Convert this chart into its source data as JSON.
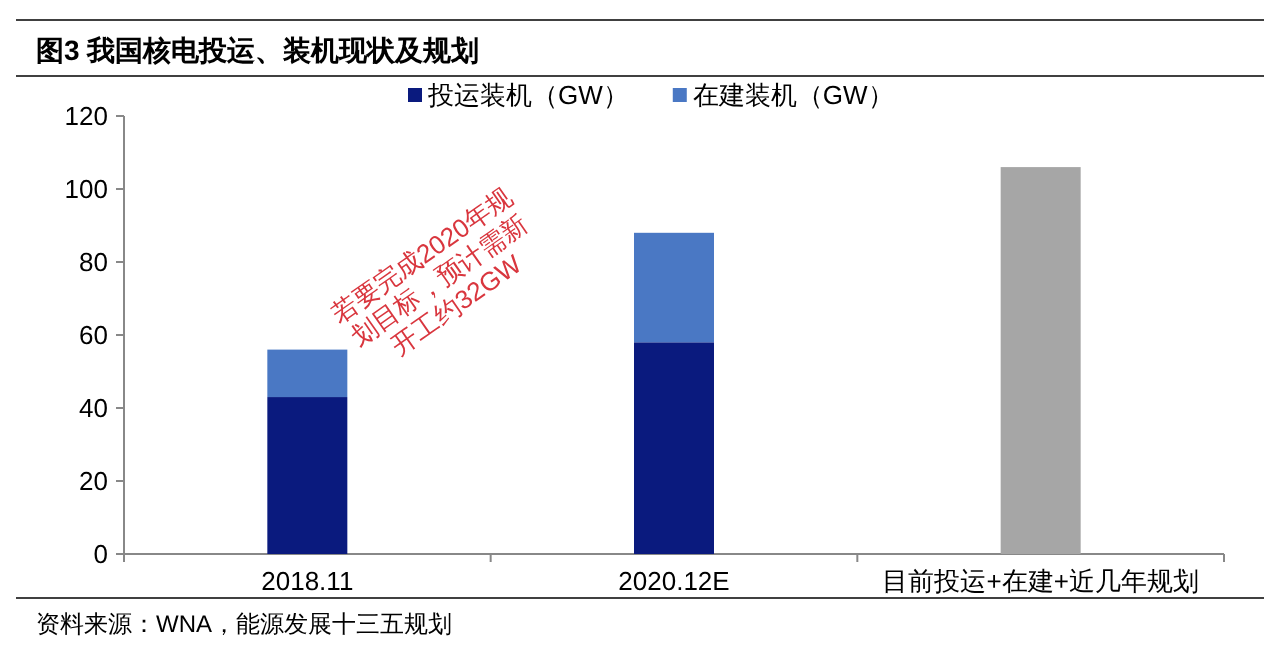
{
  "chart_data": {
    "type": "bar",
    "title": "图3  我国核电投运、装机现状及规划",
    "categories": [
      "2018.11",
      "2020.12E",
      "目前投运+在建+近几年规划"
    ],
    "series": [
      {
        "name": "投运装机（GW）",
        "color": "#0a1a7e",
        "values": [
          43,
          58,
          null
        ]
      },
      {
        "name": "在建装机（GW）",
        "color": "#4a78c4",
        "values": [
          13,
          30,
          null
        ]
      },
      {
        "color": "#a6a6a6",
        "values": [
          null,
          null,
          106
        ]
      }
    ],
    "stacked": true,
    "legend": "top",
    "ylim": [
      0,
      120
    ],
    "yticks": [
      0,
      20,
      40,
      60,
      80,
      100,
      120
    ],
    "annotations": [
      "若要完成2020年规划目标，预计需新开工约32GW",
      "资料来源：WNA，能源发展十三五规划"
    ]
  }
}
